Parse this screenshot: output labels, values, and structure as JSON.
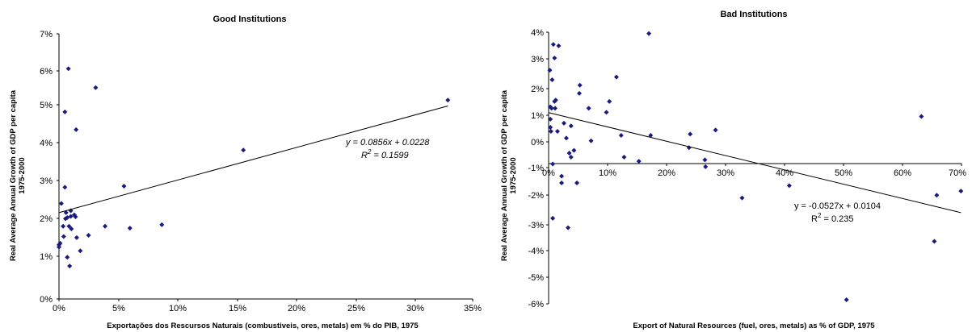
{
  "chart_data": [
    {
      "type": "scatter",
      "title": "Good Institutions",
      "xlabel": "Exportações dos Rescursos Naturais (combustiveis, ores, metals) em % do PIB, 1975",
      "ylabel_lines": [
        "Real Average Annual Growth of GDP per capita",
        "1975-2000"
      ],
      "xlim": [
        0,
        35
      ],
      "ylim": [
        0,
        7
      ],
      "x_ticks": [
        "0%",
        "5%",
        "10%",
        "15%",
        "20%",
        "25%",
        "30%",
        "35%"
      ],
      "y_ticks": [
        "0%",
        "1%",
        "2%",
        "3%",
        "4%",
        "5%",
        "6%",
        "7%"
      ],
      "trendline": {
        "slope": 0.0856,
        "intercept": 2.28,
        "equation": "y = 0.0856x + 0.0228",
        "r2_label": "R",
        "r2_value": " = 0.1599"
      },
      "color": "#1a1a80",
      "points": [
        [
          0.0,
          1.37
        ],
        [
          0.0,
          1.43
        ],
        [
          0.1,
          1.47
        ],
        [
          0.2,
          2.52
        ],
        [
          0.35,
          1.92
        ],
        [
          0.4,
          1.65
        ],
        [
          0.5,
          4.94
        ],
        [
          0.5,
          2.95
        ],
        [
          0.55,
          2.12
        ],
        [
          0.6,
          2.28
        ],
        [
          0.7,
          1.1
        ],
        [
          0.7,
          2.15
        ],
        [
          0.8,
          6.08
        ],
        [
          0.85,
          1.92
        ],
        [
          0.9,
          0.87
        ],
        [
          1.0,
          2.33
        ],
        [
          1.0,
          2.18
        ],
        [
          1.05,
          1.85
        ],
        [
          1.3,
          2.22
        ],
        [
          1.4,
          2.17
        ],
        [
          1.45,
          4.47
        ],
        [
          1.5,
          1.62
        ],
        [
          1.8,
          1.27
        ],
        [
          2.5,
          1.68
        ],
        [
          3.1,
          5.58
        ],
        [
          3.9,
          1.92
        ],
        [
          5.5,
          2.98
        ],
        [
          6.0,
          1.87
        ],
        [
          8.7,
          1.96
        ],
        [
          15.6,
          3.93
        ],
        [
          32.9,
          5.25
        ]
      ]
    },
    {
      "type": "scatter",
      "title": "Bad Institutions",
      "xlabel": "Export of Natural Resources (fuel, ores, metals) as % of GDP, 1975",
      "ylabel_lines": [
        "Real Average Annual Growth of GDP per capita",
        "1975-2000"
      ],
      "xlim": [
        0,
        70
      ],
      "ylim": [
        -6,
        4
      ],
      "x_ticks": [
        "0%",
        "10%",
        "20%",
        "30%",
        "40%",
        "50%",
        "60%",
        "70%"
      ],
      "y_ticks": [
        "-6%",
        "-5%",
        "-4%",
        "-3%",
        "-2%",
        "-1%",
        "0%",
        "1%",
        "2%",
        "3%",
        "4%"
      ],
      "trendline": {
        "slope": -0.0527,
        "intercept": 1.04,
        "equation": "y = -0.0527x + 0.0104",
        "r2_label": "R",
        "r2_value": " = 0.235"
      },
      "color": "#1a1a80",
      "points": [
        [
          0.2,
          2.6
        ],
        [
          0.3,
          1.25
        ],
        [
          0.3,
          0.8
        ],
        [
          0.3,
          0.5
        ],
        [
          0.4,
          0.35
        ],
        [
          0.5,
          1.2
        ],
        [
          0.6,
          2.25
        ],
        [
          0.7,
          -0.85
        ],
        [
          0.7,
          -2.85
        ],
        [
          0.8,
          3.55
        ],
        [
          1.0,
          3.05
        ],
        [
          1.0,
          1.45
        ],
        [
          1.1,
          1.2
        ],
        [
          1.2,
          1.5
        ],
        [
          1.5,
          0.35
        ],
        [
          1.7,
          3.5
        ],
        [
          2.2,
          -1.3
        ],
        [
          2.2,
          -1.55
        ],
        [
          2.6,
          0.65
        ],
        [
          3.0,
          0.1
        ],
        [
          3.3,
          -3.2
        ],
        [
          3.5,
          -0.45
        ],
        [
          3.8,
          -0.6
        ],
        [
          3.8,
          0.55
        ],
        [
          4.3,
          -0.35
        ],
        [
          4.8,
          -1.55
        ],
        [
          5.2,
          1.75
        ],
        [
          5.3,
          2.05
        ],
        [
          6.8,
          1.2
        ],
        [
          7.2,
          0.0
        ],
        [
          9.8,
          1.05
        ],
        [
          10.3,
          1.45
        ],
        [
          11.5,
          2.35
        ],
        [
          12.3,
          0.2
        ],
        [
          12.8,
          -0.6
        ],
        [
          15.3,
          -0.75
        ],
        [
          17.0,
          3.95
        ],
        [
          17.3,
          0.2
        ],
        [
          23.8,
          -0.25
        ],
        [
          24.0,
          0.25
        ],
        [
          26.5,
          -0.7
        ],
        [
          26.6,
          -0.95
        ],
        [
          28.3,
          0.4
        ],
        [
          32.8,
          -2.1
        ],
        [
          40.8,
          -1.65
        ],
        [
          50.5,
          -5.85
        ],
        [
          63.2,
          0.9
        ],
        [
          65.4,
          -3.7
        ],
        [
          65.8,
          -2.0
        ],
        [
          69.9,
          -1.85
        ]
      ]
    }
  ]
}
